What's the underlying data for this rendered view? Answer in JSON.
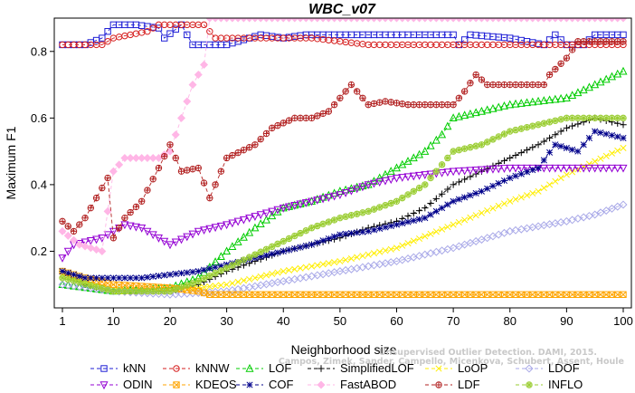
{
  "watermark": {
    "line1": "Unsupervised Outlier Detection. DAMI, 2015.",
    "line2": "Campos, Zimek, Sander, Campello, Micenkova, Schubert, Assent, Houle"
  },
  "chart_data": {
    "type": "line",
    "title": "WBC_v07",
    "xlabel": "Neighborhood size",
    "ylabel": "Maximum F1",
    "xlim": [
      1,
      100
    ],
    "ylim": [
      0.03,
      0.9
    ],
    "xticks": [
      "1",
      "10",
      "20",
      "30",
      "40",
      "50",
      "60",
      "70",
      "80",
      "90",
      "100"
    ],
    "yticks": [
      "0.2",
      "0.4",
      "0.6",
      "0.8"
    ],
    "grid": false,
    "legend_position": "bottom",
    "series": [
      {
        "name": "kNN",
        "color": "#1f1fd6",
        "marker": "square",
        "dash": "4,3",
        "points": [
          [
            1,
            0.82
          ],
          [
            5,
            0.82
          ],
          [
            8,
            0.84
          ],
          [
            10,
            0.88
          ],
          [
            14,
            0.88
          ],
          [
            18,
            0.87
          ],
          [
            19,
            0.84
          ],
          [
            22,
            0.88
          ],
          [
            24,
            0.82
          ],
          [
            30,
            0.82
          ],
          [
            36,
            0.85
          ],
          [
            40,
            0.84
          ],
          [
            44,
            0.85
          ],
          [
            60,
            0.85
          ],
          [
            70,
            0.85
          ],
          [
            71,
            0.82
          ],
          [
            73,
            0.85
          ],
          [
            80,
            0.84
          ],
          [
            86,
            0.82
          ],
          [
            88,
            0.85
          ],
          [
            90,
            0.82
          ],
          [
            93,
            0.82
          ],
          [
            95,
            0.85
          ],
          [
            100,
            0.85
          ]
        ]
      },
      {
        "name": "kNNW",
        "color": "#d61f1f",
        "marker": "circle",
        "dash": "4,3",
        "points": [
          [
            1,
            0.82
          ],
          [
            8,
            0.82
          ],
          [
            10,
            0.84
          ],
          [
            16,
            0.86
          ],
          [
            18,
            0.88
          ],
          [
            26,
            0.88
          ],
          [
            28,
            0.84
          ],
          [
            45,
            0.84
          ],
          [
            55,
            0.82
          ],
          [
            100,
            0.82
          ]
        ]
      },
      {
        "name": "LOF",
        "color": "#00cc00",
        "marker": "triangle-up",
        "dash": "4,3",
        "points": [
          [
            1,
            0.1
          ],
          [
            10,
            0.08
          ],
          [
            20,
            0.09
          ],
          [
            25,
            0.12
          ],
          [
            30,
            0.2
          ],
          [
            35,
            0.27
          ],
          [
            40,
            0.33
          ],
          [
            45,
            0.35
          ],
          [
            50,
            0.38
          ],
          [
            55,
            0.4
          ],
          [
            60,
            0.45
          ],
          [
            65,
            0.5
          ],
          [
            68,
            0.55
          ],
          [
            70,
            0.6
          ],
          [
            75,
            0.62
          ],
          [
            80,
            0.64
          ],
          [
            85,
            0.65
          ],
          [
            90,
            0.66
          ],
          [
            95,
            0.7
          ],
          [
            100,
            0.74
          ]
        ]
      },
      {
        "name": "SimplifiedLOF",
        "color": "#000000",
        "marker": "plus",
        "dash": "4,3",
        "points": [
          [
            1,
            0.14
          ],
          [
            5,
            0.1
          ],
          [
            10,
            0.08
          ],
          [
            20,
            0.08
          ],
          [
            25,
            0.1
          ],
          [
            30,
            0.14
          ],
          [
            35,
            0.17
          ],
          [
            40,
            0.2
          ],
          [
            45,
            0.22
          ],
          [
            50,
            0.24
          ],
          [
            55,
            0.27
          ],
          [
            60,
            0.29
          ],
          [
            65,
            0.33
          ],
          [
            70,
            0.4
          ],
          [
            75,
            0.44
          ],
          [
            80,
            0.48
          ],
          [
            85,
            0.52
          ],
          [
            90,
            0.57
          ],
          [
            95,
            0.6
          ],
          [
            100,
            0.58
          ]
        ]
      },
      {
        "name": "LoOP",
        "color": "#ffee00",
        "marker": "cross",
        "dash": "4,3",
        "points": [
          [
            1,
            0.13
          ],
          [
            10,
            0.08
          ],
          [
            20,
            0.08
          ],
          [
            30,
            0.1
          ],
          [
            40,
            0.14
          ],
          [
            50,
            0.17
          ],
          [
            60,
            0.21
          ],
          [
            70,
            0.28
          ],
          [
            80,
            0.35
          ],
          [
            85,
            0.38
          ],
          [
            90,
            0.43
          ],
          [
            95,
            0.47
          ],
          [
            100,
            0.51
          ]
        ]
      },
      {
        "name": "LDOF",
        "color": "#a9a9e8",
        "marker": "diamond",
        "dash": "4,3",
        "points": [
          [
            1,
            0.1
          ],
          [
            10,
            0.08
          ],
          [
            20,
            0.07
          ],
          [
            30,
            0.08
          ],
          [
            40,
            0.11
          ],
          [
            50,
            0.14
          ],
          [
            60,
            0.17
          ],
          [
            70,
            0.21
          ],
          [
            80,
            0.26
          ],
          [
            90,
            0.29
          ],
          [
            95,
            0.31
          ],
          [
            100,
            0.34
          ]
        ]
      },
      {
        "name": "ODIN",
        "color": "#9400d3",
        "marker": "triangle-down",
        "dash": "4,3",
        "points": [
          [
            1,
            0.18
          ],
          [
            3,
            0.22
          ],
          [
            8,
            0.24
          ],
          [
            12,
            0.28
          ],
          [
            15,
            0.27
          ],
          [
            20,
            0.22
          ],
          [
            25,
            0.26
          ],
          [
            30,
            0.28
          ],
          [
            40,
            0.33
          ],
          [
            50,
            0.37
          ],
          [
            55,
            0.4
          ],
          [
            60,
            0.42
          ],
          [
            70,
            0.44
          ],
          [
            80,
            0.45
          ],
          [
            90,
            0.45
          ],
          [
            100,
            0.45
          ]
        ]
      },
      {
        "name": "KDEOS",
        "color": "#ffa500",
        "marker": "x-square",
        "dash": "4,3",
        "points": [
          [
            1,
            0.14
          ],
          [
            5,
            0.12
          ],
          [
            10,
            0.1
          ],
          [
            20,
            0.09
          ],
          [
            25,
            0.08
          ],
          [
            27,
            0.07
          ],
          [
            40,
            0.07
          ],
          [
            60,
            0.07
          ],
          [
            80,
            0.07
          ],
          [
            100,
            0.07
          ]
        ]
      },
      {
        "name": "COF",
        "color": "#00008b",
        "marker": "star",
        "dash": "4,3",
        "points": [
          [
            1,
            0.14
          ],
          [
            5,
            0.12
          ],
          [
            10,
            0.12
          ],
          [
            15,
            0.12
          ],
          [
            20,
            0.13
          ],
          [
            25,
            0.14
          ],
          [
            30,
            0.16
          ],
          [
            35,
            0.18
          ],
          [
            40,
            0.2
          ],
          [
            45,
            0.22
          ],
          [
            50,
            0.25
          ],
          [
            55,
            0.26
          ],
          [
            60,
            0.28
          ],
          [
            65,
            0.3
          ],
          [
            70,
            0.35
          ],
          [
            75,
            0.38
          ],
          [
            80,
            0.42
          ],
          [
            85,
            0.45
          ],
          [
            88,
            0.52
          ],
          [
            92,
            0.5
          ],
          [
            95,
            0.56
          ],
          [
            100,
            0.54
          ]
        ]
      },
      {
        "name": "FastABOD",
        "color": "#ffb6e6",
        "marker": "diamond-filled",
        "dash": "4,3",
        "points": [
          [
            1,
            0.26
          ],
          [
            4,
            0.22
          ],
          [
            8,
            0.2
          ],
          [
            10,
            0.44
          ],
          [
            12,
            0.48
          ],
          [
            18,
            0.48
          ],
          [
            20,
            0.5
          ],
          [
            22,
            0.6
          ],
          [
            24,
            0.7
          ],
          [
            26,
            0.76
          ],
          [
            27,
            0.9
          ],
          [
            30,
            0.9
          ],
          [
            40,
            0.9
          ],
          [
            60,
            0.9
          ],
          [
            80,
            0.9
          ],
          [
            100,
            0.9
          ]
        ]
      },
      {
        "name": "LDF",
        "color": "#b22222",
        "marker": "circle-plus",
        "dash": "4,3",
        "points": [
          [
            1,
            0.29
          ],
          [
            3,
            0.26
          ],
          [
            5,
            0.3
          ],
          [
            7,
            0.36
          ],
          [
            9,
            0.42
          ],
          [
            10,
            0.24
          ],
          [
            12,
            0.3
          ],
          [
            15,
            0.35
          ],
          [
            18,
            0.45
          ],
          [
            20,
            0.52
          ],
          [
            22,
            0.44
          ],
          [
            25,
            0.45
          ],
          [
            27,
            0.36
          ],
          [
            30,
            0.48
          ],
          [
            35,
            0.52
          ],
          [
            38,
            0.57
          ],
          [
            42,
            0.6
          ],
          [
            45,
            0.6
          ],
          [
            48,
            0.62
          ],
          [
            50,
            0.66
          ],
          [
            52,
            0.7
          ],
          [
            55,
            0.64
          ],
          [
            58,
            0.65
          ],
          [
            62,
            0.64
          ],
          [
            70,
            0.64
          ],
          [
            72,
            0.68
          ],
          [
            74,
            0.73
          ],
          [
            76,
            0.7
          ],
          [
            86,
            0.7
          ],
          [
            87,
            0.73
          ],
          [
            90,
            0.78
          ],
          [
            92,
            0.83
          ],
          [
            100,
            0.83
          ]
        ]
      },
      {
        "name": "INFLO",
        "color": "#9acd32",
        "marker": "circle-star",
        "dash": "4,3",
        "points": [
          [
            1,
            0.12
          ],
          [
            10,
            0.08
          ],
          [
            20,
            0.08
          ],
          [
            25,
            0.11
          ],
          [
            30,
            0.15
          ],
          [
            35,
            0.19
          ],
          [
            40,
            0.23
          ],
          [
            45,
            0.27
          ],
          [
            50,
            0.3
          ],
          [
            55,
            0.32
          ],
          [
            60,
            0.35
          ],
          [
            65,
            0.4
          ],
          [
            70,
            0.5
          ],
          [
            75,
            0.52
          ],
          [
            80,
            0.56
          ],
          [
            85,
            0.58
          ],
          [
            90,
            0.6
          ],
          [
            95,
            0.6
          ],
          [
            100,
            0.6
          ]
        ]
      }
    ]
  }
}
